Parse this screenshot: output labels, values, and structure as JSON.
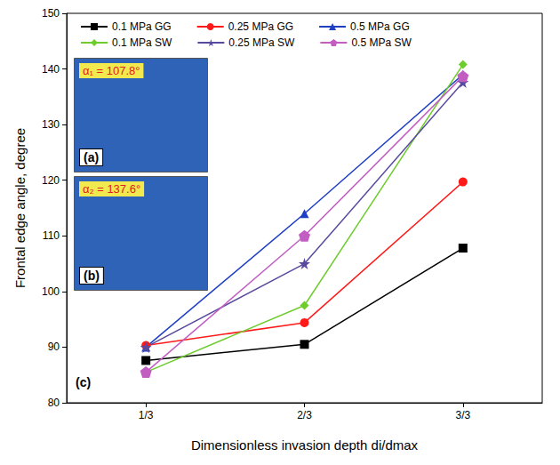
{
  "chart_data": {
    "type": "line",
    "x_label": "Dimensionless invasion depth di/dmax",
    "y_label": "Frontal edge angle, degree",
    "categories": [
      "1/3",
      "2/3",
      "3/3"
    ],
    "ylim": [
      80,
      150
    ],
    "yticks": [
      80,
      90,
      100,
      110,
      120,
      130,
      140,
      150
    ],
    "grid": false,
    "legend": "upper left",
    "series": [
      {
        "name": "0.1 MPa GG",
        "color": "#000000",
        "marker": "square",
        "values": [
          87.6,
          90.5,
          107.8
        ]
      },
      {
        "name": "0.25 MPa GG",
        "color": "#ff1a1a",
        "marker": "circle",
        "values": [
          90.3,
          94.4,
          119.7
        ]
      },
      {
        "name": "0.5 MPa GG",
        "color": "#1f3fc4",
        "marker": "triangle",
        "values": [
          90.0,
          114.0,
          139.0
        ]
      },
      {
        "name": "0.1 MPa SW",
        "color": "#6fcc2e",
        "marker": "diamond",
        "values": [
          85.5,
          97.5,
          140.8
        ]
      },
      {
        "name": "0.25 MPa SW",
        "color": "#5a4a9e",
        "marker": "star",
        "values": [
          90.0,
          105.0,
          137.6
        ]
      },
      {
        "name": "0.5 MPa SW",
        "color": "#c25ec2",
        "marker": "pentagon",
        "values": [
          85.5,
          110.0,
          138.7
        ]
      }
    ],
    "annotations": {
      "insets": [
        {
          "label": "(a)",
          "text": "α₁ = 107.8°"
        },
        {
          "label": "(b)",
          "text": "α₂ = 137.6°"
        }
      ],
      "panel": "(c)"
    }
  }
}
